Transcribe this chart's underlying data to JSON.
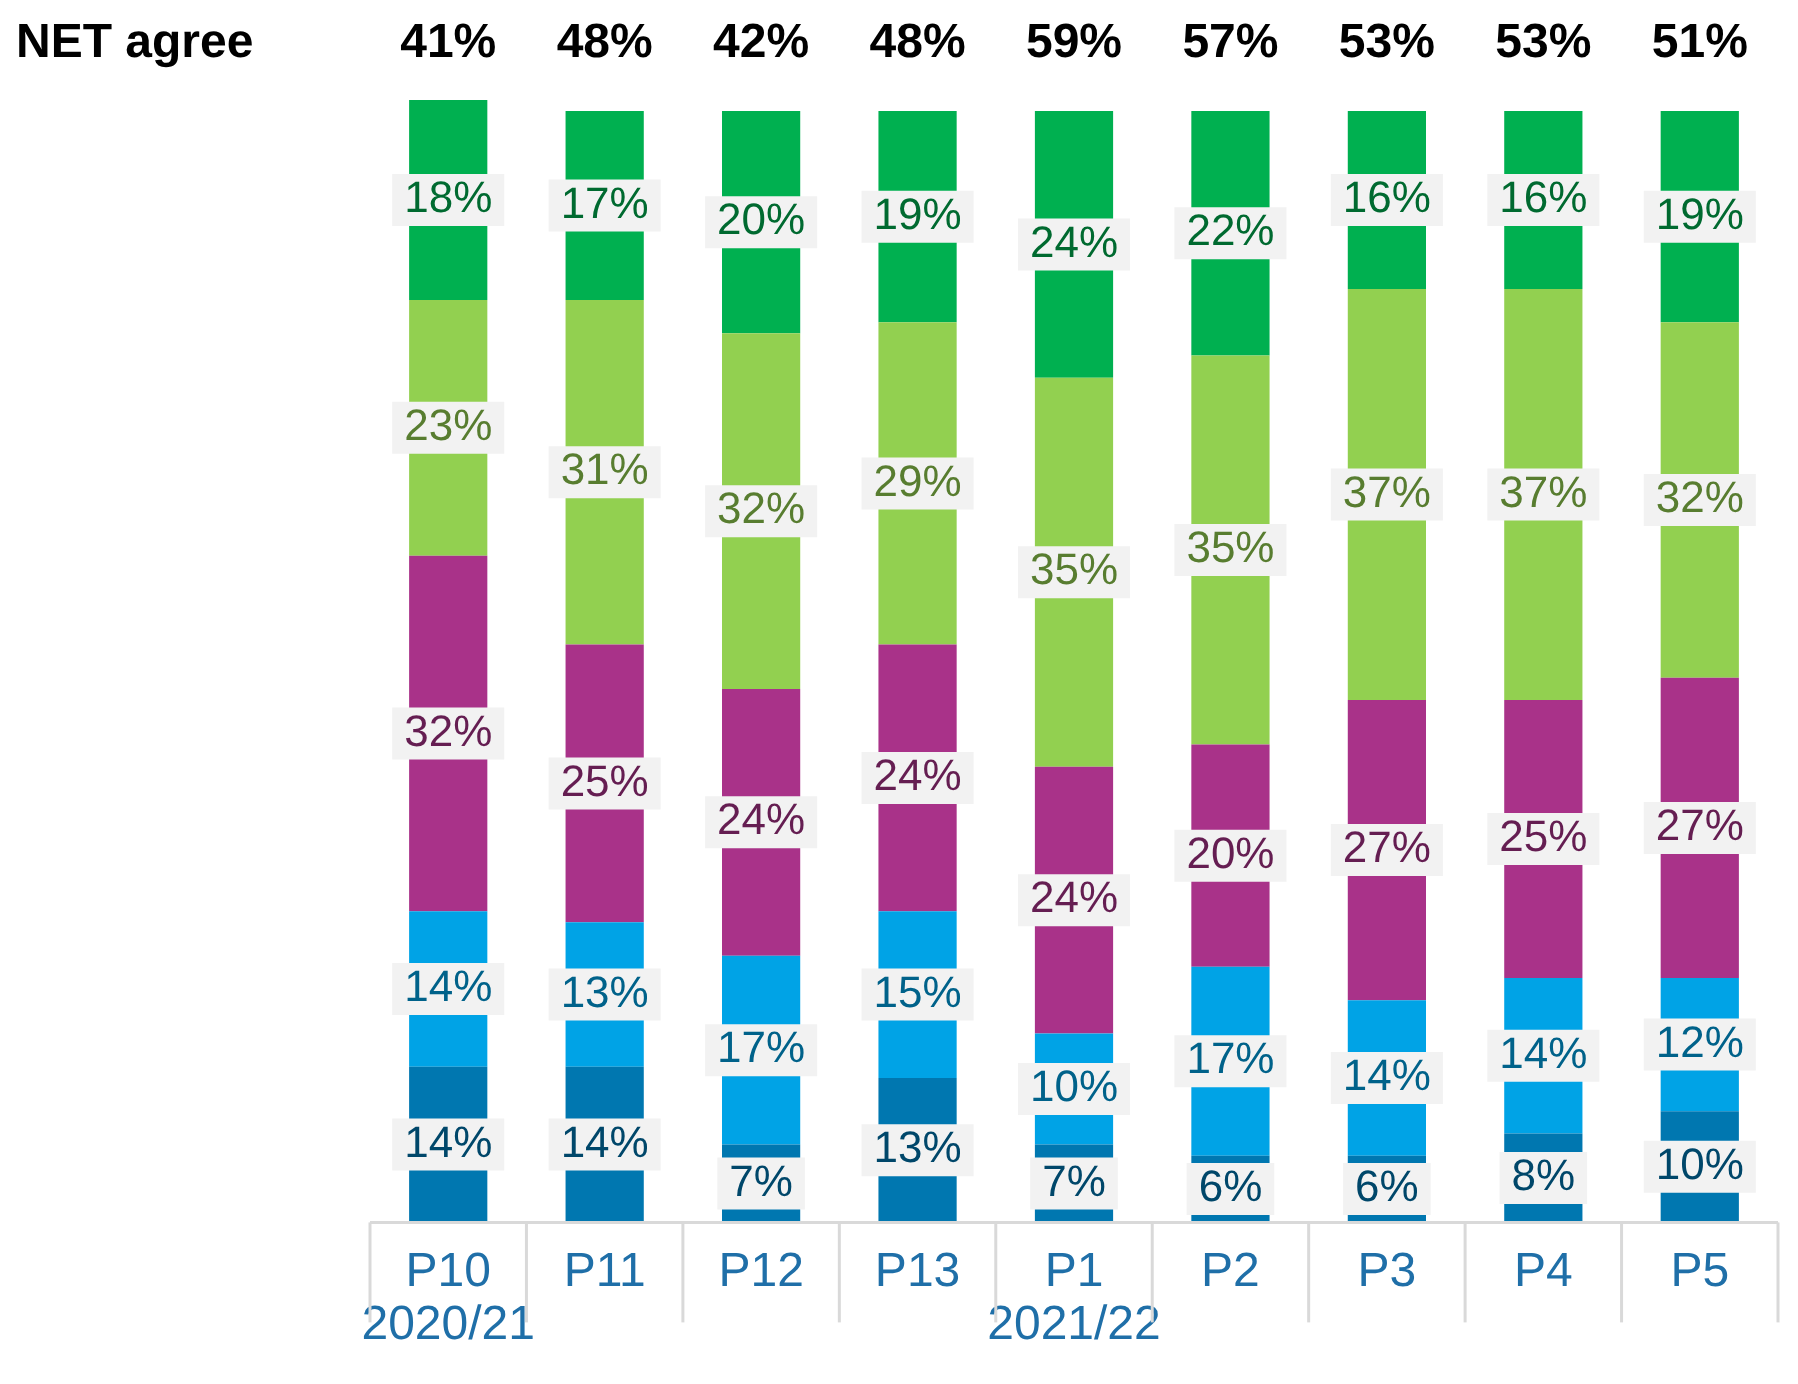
{
  "chart_data": {
    "type": "bar",
    "stacked": true,
    "legend": false,
    "categories": [
      "P10 2020/21",
      "P11",
      "P12",
      "P13",
      "P1 2021/22",
      "P2",
      "P3",
      "P4",
      "P5"
    ],
    "series": [
      {
        "color": "#0077b0",
        "values": [
          14,
          14,
          7,
          13,
          7,
          6,
          6,
          8,
          10
        ],
        "value_labels": [
          "14%",
          "14%",
          "7%",
          "13%",
          "7%",
          "6%",
          "6%",
          "8%",
          "10%"
        ]
      },
      {
        "color": "#00a3e6",
        "values": [
          14,
          13,
          17,
          15,
          10,
          17,
          14,
          14,
          12
        ],
        "value_labels": [
          "14%",
          "13%",
          "17%",
          "15%",
          "10%",
          "17%",
          "14%",
          "14%",
          "12%"
        ]
      },
      {
        "color": "#a93289",
        "values": [
          32,
          25,
          24,
          24,
          24,
          20,
          27,
          25,
          27
        ],
        "value_labels": [
          "32%",
          "25%",
          "24%",
          "24%",
          "24%",
          "20%",
          "27%",
          "25%",
          "27%"
        ]
      },
      {
        "color": "#92d050",
        "values": [
          23,
          31,
          32,
          29,
          35,
          35,
          37,
          37,
          32
        ],
        "value_labels": [
          "23%",
          "31%",
          "32%",
          "29%",
          "35%",
          "35%",
          "37%",
          "37%",
          "32%"
        ]
      },
      {
        "color": "#00b050",
        "values": [
          18,
          17,
          20,
          19,
          24,
          22,
          16,
          16,
          19
        ],
        "value_labels": [
          "18%",
          "17%",
          "20%",
          "19%",
          "24%",
          "22%",
          "16%",
          "16%",
          "19%"
        ]
      }
    ],
    "annotations": [
      "NET agree",
      "41%",
      "48%",
      "42%",
      "48%",
      "59%",
      "57%",
      "53%",
      "53%",
      "51%"
    ]
  }
}
